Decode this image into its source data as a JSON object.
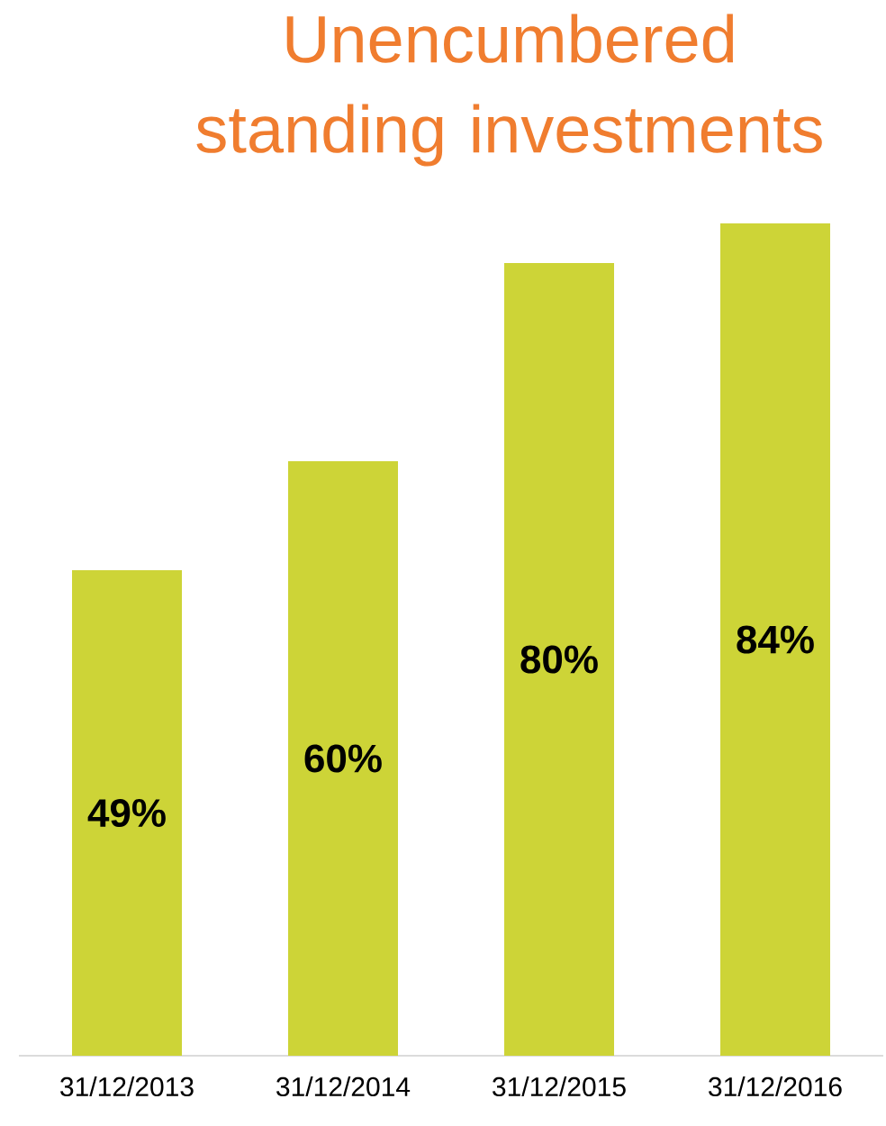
{
  "chart_data": {
    "type": "bar",
    "title": "Unencumbered standing investments",
    "categories": [
      "31/12/2013",
      "31/12/2014",
      "31/12/2015",
      "31/12/2016"
    ],
    "values": [
      49,
      60,
      80,
      84
    ],
    "value_labels": [
      "49%",
      "60%",
      "80%",
      "84%"
    ],
    "color": "#cdd437"
  }
}
